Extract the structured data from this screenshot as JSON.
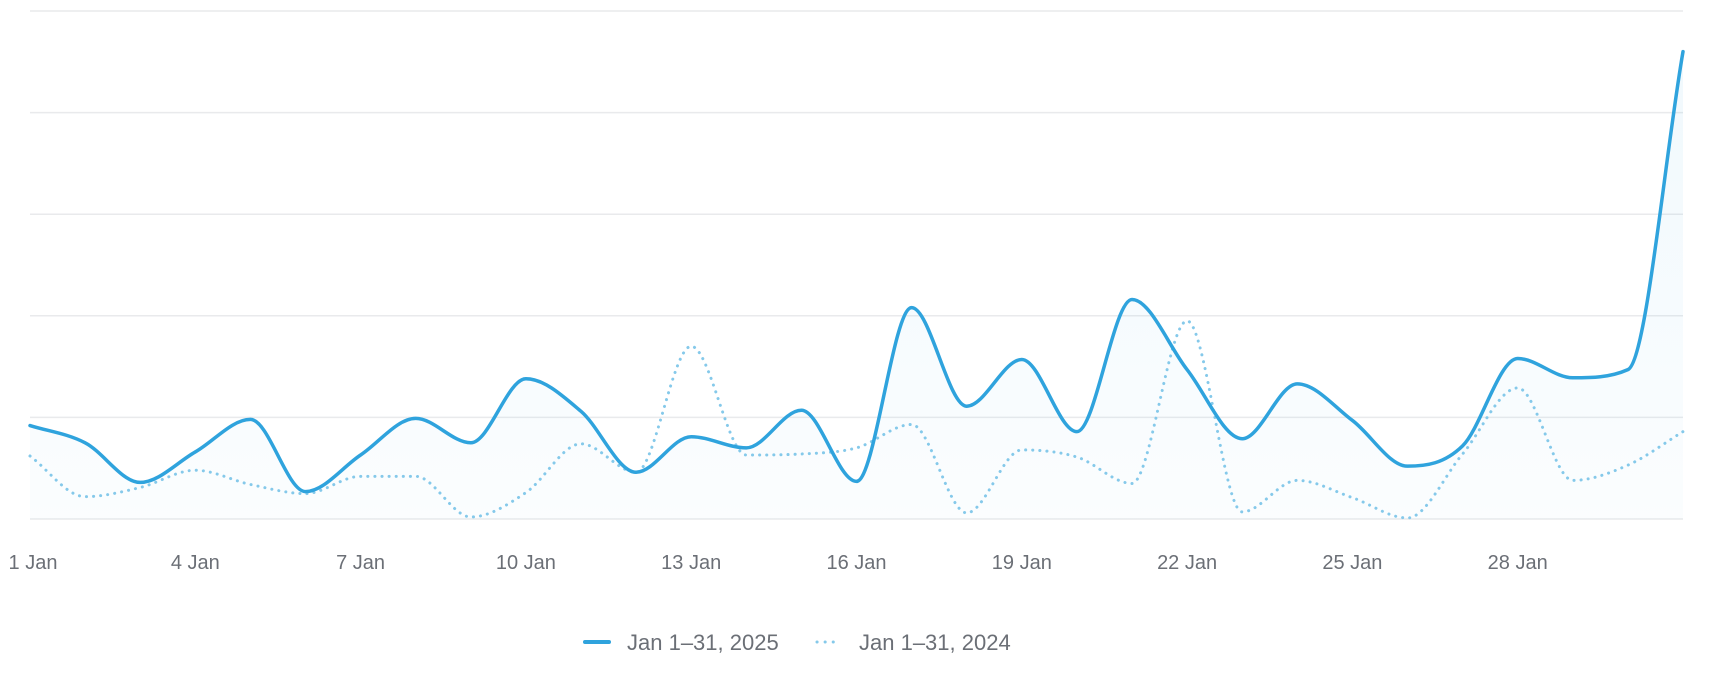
{
  "chart_data": {
    "type": "line",
    "title": "",
    "xlabel": "",
    "ylabel": "",
    "x": [
      "1 Jan",
      "2 Jan",
      "3 Jan",
      "4 Jan",
      "5 Jan",
      "6 Jan",
      "7 Jan",
      "8 Jan",
      "9 Jan",
      "10 Jan",
      "11 Jan",
      "12 Jan",
      "13 Jan",
      "14 Jan",
      "15 Jan",
      "16 Jan",
      "17 Jan",
      "18 Jan",
      "19 Jan",
      "20 Jan",
      "21 Jan",
      "22 Jan",
      "23 Jan",
      "24 Jan",
      "25 Jan",
      "26 Jan",
      "27 Jan",
      "28 Jan",
      "29 Jan",
      "30 Jan",
      "31 Jan"
    ],
    "x_tick_labels": [
      "1 Jan",
      "4 Jan",
      "7 Jan",
      "10 Jan",
      "13 Jan",
      "16 Jan",
      "19 Jan",
      "22 Jan",
      "25 Jan",
      "28 Jan"
    ],
    "ylim": [
      0,
      5
    ],
    "grid": true,
    "legend_position": "bottom",
    "series": [
      {
        "name": "Jan 1–31, 2025",
        "style": "solid",
        "color": "#2fa3dd",
        "fill": true,
        "values": [
          0.92,
          0.75,
          0.36,
          0.66,
          0.98,
          0.27,
          0.63,
          0.99,
          0.75,
          1.38,
          1.06,
          0.46,
          0.81,
          0.7,
          1.07,
          0.37,
          2.08,
          1.11,
          1.57,
          0.86,
          2.16,
          1.47,
          0.79,
          1.33,
          0.97,
          0.52,
          0.72,
          1.58,
          1.39,
          1.47,
          4.6
        ]
      },
      {
        "name": "Jan 1–31, 2024",
        "style": "dotted",
        "color": "#85c9ea",
        "fill": false,
        "values": [
          0.62,
          0.22,
          0.31,
          0.48,
          0.34,
          0.25,
          0.42,
          0.42,
          0.02,
          0.26,
          0.74,
          0.46,
          1.7,
          0.63,
          0.64,
          0.7,
          0.93,
          0.06,
          0.68,
          0.61,
          0.35,
          1.95,
          0.07,
          0.38,
          0.21,
          0.01,
          0.64,
          1.29,
          0.38,
          0.53,
          0.86
        ]
      }
    ]
  }
}
